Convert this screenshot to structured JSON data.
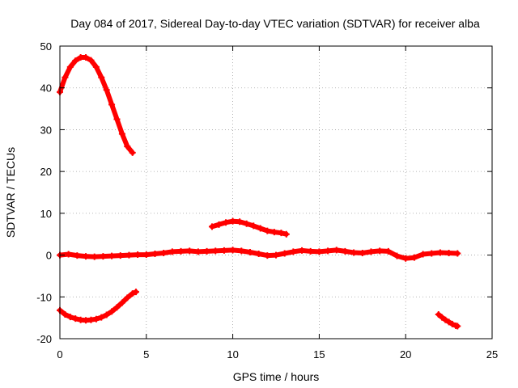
{
  "chart_data": {
    "type": "scatter",
    "title": "Day 084 of 2017, Sidereal Day-to-day VTEC variation (SDTVAR) for receiver alba",
    "xlabel": "GPS time / hours",
    "ylabel": "SDTVAR / TECUs",
    "xlim": [
      0,
      25
    ],
    "ylim": [
      -20,
      50
    ],
    "xticks": [
      0,
      5,
      10,
      15,
      20,
      25
    ],
    "yticks": [
      -20,
      -10,
      0,
      10,
      20,
      30,
      40,
      50
    ],
    "grid": true,
    "marker_color": "#ff0000",
    "series": [
      {
        "name": "arc-high-early",
        "x": [
          0,
          0.3,
          0.6,
          0.9,
          1.2,
          1.5,
          1.8,
          2.1,
          2.4,
          2.7,
          3.0,
          3.3,
          3.6,
          3.9,
          4.2
        ],
        "y": [
          39,
          42.5,
          45,
          46.5,
          47.3,
          47.3,
          46.6,
          45,
          42.5,
          39.5,
          36,
          32.5,
          29,
          26,
          24.5
        ]
      },
      {
        "name": "arc-mid",
        "x": [
          8.8,
          9.2,
          9.6,
          10.0,
          10.4,
          10.8,
          11.2,
          11.6,
          12.0,
          12.4,
          12.8,
          13.1
        ],
        "y": [
          6.8,
          7.3,
          7.8,
          8.1,
          8.0,
          7.5,
          7.0,
          6.4,
          5.8,
          5.5,
          5.3,
          5.0
        ]
      },
      {
        "name": "arc-zero",
        "x": [
          0,
          0.5,
          1,
          1.5,
          2,
          2.5,
          3,
          3.5,
          4,
          4.5,
          5,
          5.5,
          6,
          6.5,
          7,
          7.5,
          8,
          8.5,
          9,
          9.5,
          10,
          10.5,
          11,
          11.5,
          12,
          12.5,
          13,
          13.5,
          14,
          14.5,
          15,
          15.5,
          16,
          16.5,
          17,
          17.5,
          18,
          18.5,
          19,
          19.5,
          20,
          20.5,
          21,
          21.5,
          22,
          22.5,
          23
        ],
        "y": [
          0,
          0.2,
          -0.1,
          -0.3,
          -0.4,
          -0.3,
          -0.2,
          -0.1,
          0,
          0.1,
          0.1,
          0.3,
          0.5,
          0.8,
          0.9,
          1.0,
          0.8,
          0.9,
          1.0,
          1.1,
          1.2,
          1.0,
          0.7,
          0.3,
          -0.1,
          0.0,
          0.4,
          0.8,
          1.1,
          0.9,
          0.8,
          1.0,
          1.2,
          0.9,
          0.6,
          0.5,
          0.8,
          1.0,
          0.9,
          -0.2,
          -0.8,
          -0.6,
          0.2,
          0.4,
          0.6,
          0.5,
          0.4
        ]
      },
      {
        "name": "arc-negative-early",
        "x": [
          0,
          0.3,
          0.6,
          0.9,
          1.2,
          1.5,
          1.8,
          2.1,
          2.4,
          2.7,
          3.0,
          3.3,
          3.6,
          3.9,
          4.2,
          4.4
        ],
        "y": [
          -13.2,
          -14.2,
          -14.8,
          -15.2,
          -15.5,
          -15.6,
          -15.5,
          -15.3,
          -14.9,
          -14.3,
          -13.5,
          -12.5,
          -11.4,
          -10.2,
          -9.2,
          -8.8
        ]
      },
      {
        "name": "arc-negative-late",
        "x": [
          21.9,
          22.1,
          22.3,
          22.5,
          22.7,
          22.9,
          23.0
        ],
        "y": [
          -14.2,
          -14.9,
          -15.5,
          -16.0,
          -16.5,
          -16.9,
          -17.0
        ]
      }
    ]
  }
}
